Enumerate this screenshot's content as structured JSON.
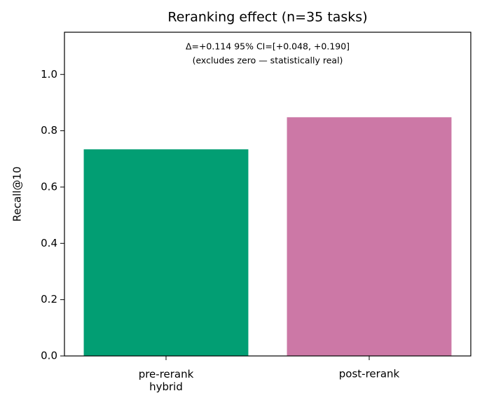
{
  "chart_data": {
    "type": "bar",
    "title": "Reranking effect (n=35 tasks)",
    "y_label": "Recall@10",
    "annotations": [
      "Δ=+0.114  95% CI=[+0.048, +0.190]",
      "(excludes zero — statistically real)"
    ],
    "categories": [
      "pre-rerank\nhybrid",
      "post-rerank"
    ],
    "values": [
      0.734,
      0.848
    ],
    "colors": [
      "#029e73",
      "#cc78a6"
    ],
    "ylim": [
      0,
      1.15
    ],
    "yticks": [
      {
        "value": 0,
        "label": "0.0"
      },
      {
        "value": 0.2,
        "label": "0.2"
      },
      {
        "value": 0.4,
        "label": "0.4"
      },
      {
        "value": 0.6,
        "label": "0.6"
      },
      {
        "value": 0.8,
        "label": "0.8"
      },
      {
        "value": 1,
        "label": "1.0"
      }
    ],
    "grid": false
  }
}
